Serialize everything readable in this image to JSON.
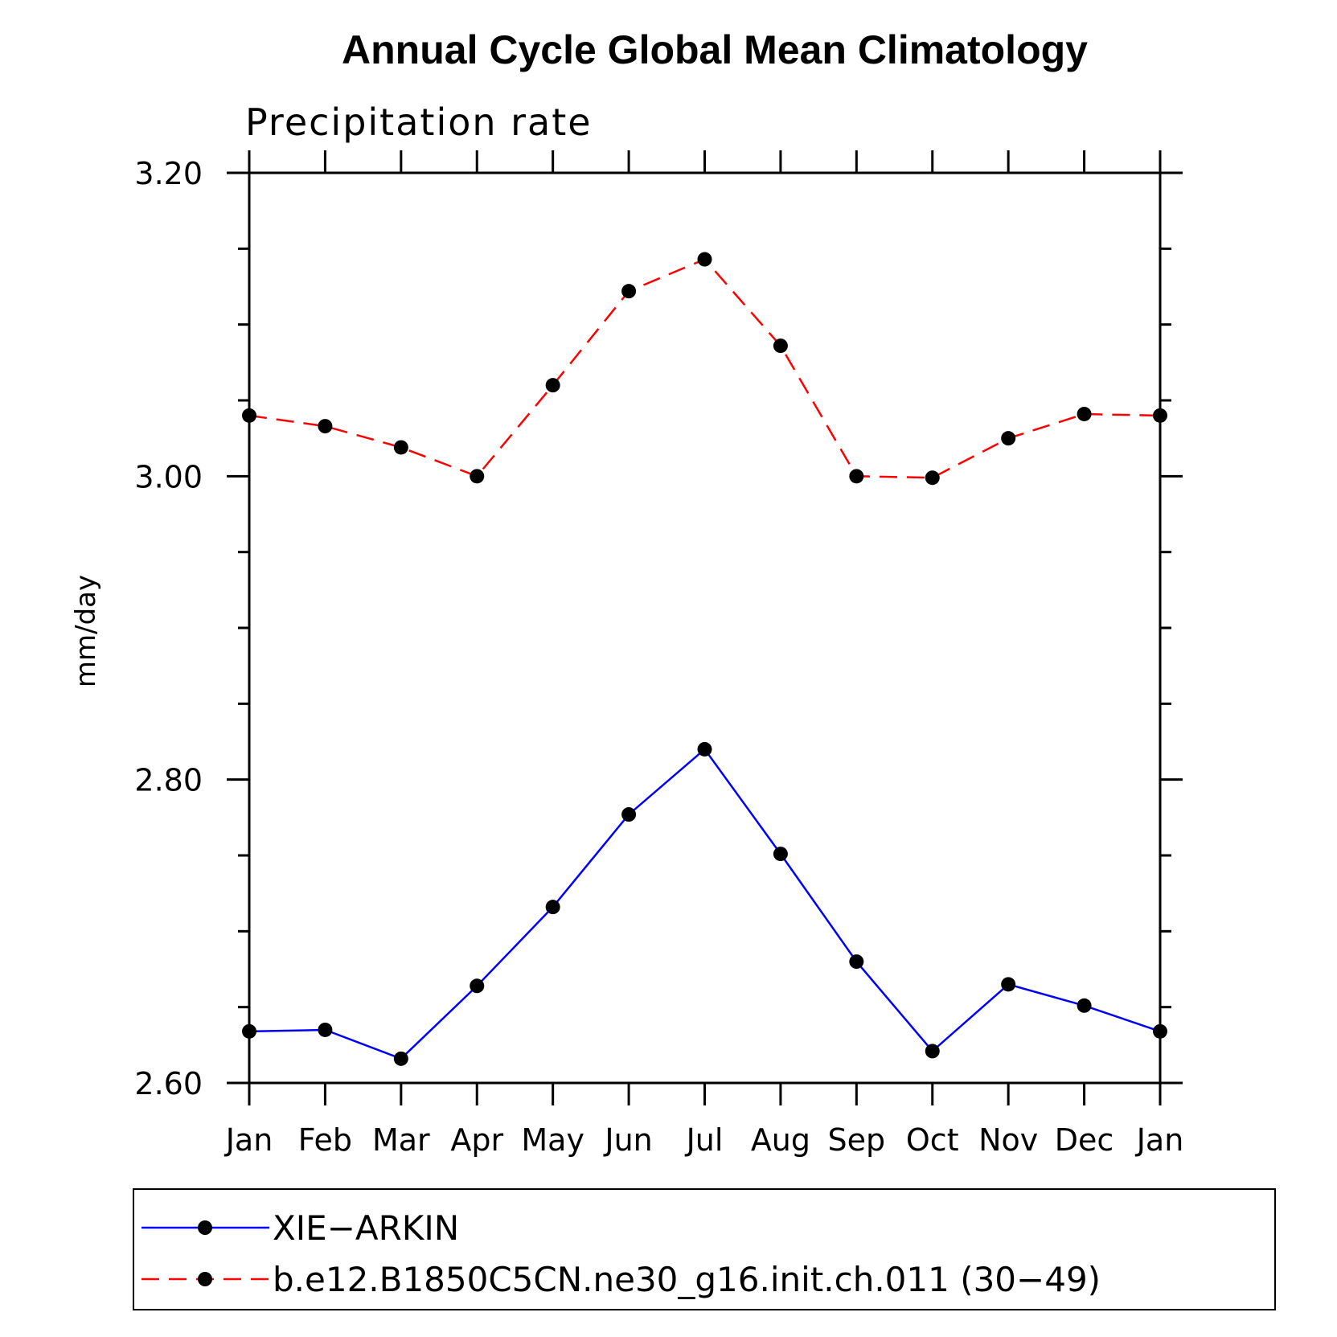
{
  "chart_data": {
    "type": "line",
    "title": "Annual Cycle Global Mean Climatology",
    "subtitle": "Precipitation rate",
    "xlabel": "",
    "ylabel": "mm/day",
    "categories": [
      "Jan",
      "Feb",
      "Mar",
      "Apr",
      "May",
      "Jun",
      "Jul",
      "Aug",
      "Sep",
      "Oct",
      "Nov",
      "Dec",
      "Jan"
    ],
    "ylim": [
      2.6,
      3.2
    ],
    "yticks": [
      "2.60",
      "2.80",
      "3.00",
      "3.20"
    ],
    "y_minor_step": 0.05,
    "grid": false,
    "legend_position": "bottom",
    "series": [
      {
        "name": "XIE−ARKIN",
        "color": "#0000ff",
        "line_style": "solid",
        "marker": "filled-circle",
        "values": [
          2.634,
          2.635,
          2.616,
          2.664,
          2.716,
          2.777,
          2.82,
          2.751,
          2.68,
          2.621,
          2.665,
          2.651,
          2.634
        ]
      },
      {
        "name": "b.e12.B1850C5CN.ne30_g16.init.ch.011 (30−49)",
        "color": "#ff0000",
        "line_style": "dashed",
        "marker": "filled-circle",
        "values": [
          3.04,
          3.033,
          3.019,
          3.0,
          3.06,
          3.122,
          3.143,
          3.086,
          3.0,
          2.999,
          3.025,
          3.041,
          3.04
        ]
      }
    ]
  }
}
